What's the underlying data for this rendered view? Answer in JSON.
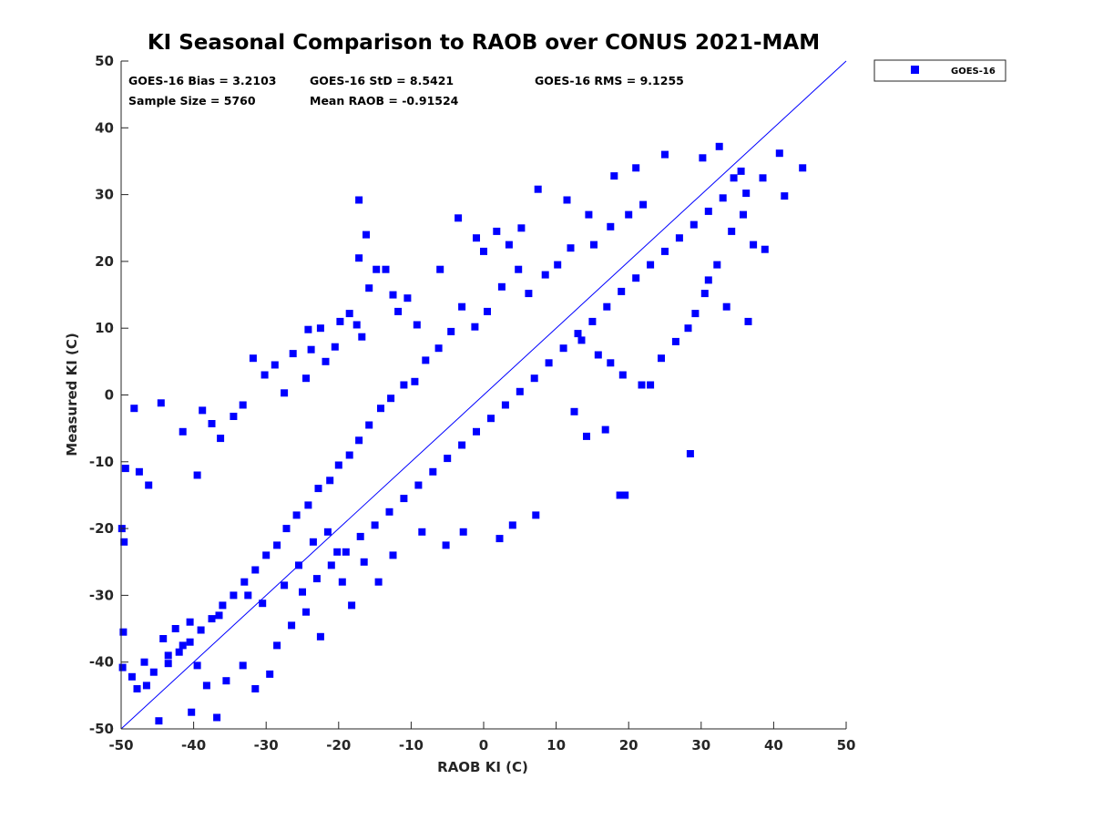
{
  "colors": {
    "series": "#0000FF",
    "axis": "#262626",
    "background": "#FFFFFF"
  },
  "chart_data": {
    "type": "scatter",
    "title": "KI Seasonal Comparison to RAOB over CONUS 2021-MAM",
    "xlabel": "RAOB KI (C)",
    "ylabel": "Measured KI (C)",
    "xlim": [
      -50,
      50
    ],
    "ylim": [
      -50,
      50
    ],
    "xticks": [
      "-50",
      "-40",
      "-30",
      "-20",
      "-10",
      "0",
      "10",
      "20",
      "30",
      "40",
      "50"
    ],
    "yticks": [
      "-50",
      "-40",
      "-30",
      "-20",
      "-10",
      "0",
      "10",
      "20",
      "30",
      "40",
      "50"
    ],
    "grid": false,
    "legend_position": "outside-top-right",
    "reference_line": {
      "type": "one-to-one",
      "from": [
        -50,
        -50
      ],
      "to": [
        50,
        50
      ]
    },
    "annotations": [
      "GOES-16 Bias = 3.2103",
      "GOES-16 StD = 8.5421",
      "GOES-16 RMS = 9.1255",
      "Sample Size = 5760",
      "Mean RAOB = -0.91524"
    ],
    "series": [
      {
        "name": "GOES-16",
        "marker": "square",
        "color": "#0000FF",
        "sample_size": 5760,
        "bias": 3.2103,
        "std": 8.5421,
        "rms": 9.1255,
        "mean_x": -0.91524,
        "points": [
          [
            -49.8,
            -40.8
          ],
          [
            -49.7,
            -35.5
          ],
          [
            -49.4,
            -11
          ],
          [
            -49.9,
            -20
          ],
          [
            -49.6,
            -22
          ],
          [
            -48.2,
            -2
          ],
          [
            -47.5,
            -11.5
          ],
          [
            -46.2,
            -13.5
          ],
          [
            -44.5,
            -1.2
          ],
          [
            -41.5,
            -5.5
          ],
          [
            -44.8,
            -48.8
          ],
          [
            -40.3,
            -47.5
          ],
          [
            -36.8,
            -48.3
          ],
          [
            -39.5,
            -12
          ],
          [
            -38.8,
            -2.3
          ],
          [
            -37.5,
            -4.3
          ],
          [
            -36.3,
            -6.5
          ],
          [
            -34.5,
            -3.2
          ],
          [
            -33.2,
            -1.5
          ],
          [
            -31.8,
            5.5
          ],
          [
            -30.2,
            3
          ],
          [
            -28.8,
            4.5
          ],
          [
            -27.5,
            0.3
          ],
          [
            -26.3,
            6.2
          ],
          [
            -24.5,
            2.5
          ],
          [
            -23.8,
            6.8
          ],
          [
            -21.8,
            5
          ],
          [
            -20.5,
            7.2
          ],
          [
            -17.5,
            10.5
          ],
          [
            -16.8,
            8.7
          ],
          [
            -19.8,
            11
          ],
          [
            -24.2,
            9.8
          ],
          [
            -22.5,
            10
          ],
          [
            -18.5,
            12.2
          ],
          [
            -15.8,
            16
          ],
          [
            -14.8,
            18.8
          ],
          [
            -13.5,
            18.8
          ],
          [
            -12.5,
            15
          ],
          [
            -17.2,
            29.2
          ],
          [
            -17.2,
            20.5
          ],
          [
            -16.2,
            24
          ],
          [
            -6,
            18.8
          ],
          [
            -10.5,
            14.5
          ],
          [
            -9.2,
            10.5
          ],
          [
            -11.8,
            12.5
          ],
          [
            -3.5,
            26.5
          ],
          [
            -1,
            23.5
          ],
          [
            0,
            21.5
          ],
          [
            1.8,
            24.5
          ],
          [
            3.5,
            22.5
          ],
          [
            5.2,
            25
          ],
          [
            7.5,
            30.8
          ],
          [
            11.5,
            29.2
          ],
          [
            14.5,
            27
          ],
          [
            18,
            32.8
          ],
          [
            21,
            34
          ],
          [
            25,
            36
          ],
          [
            30.2,
            35.5
          ],
          [
            32.5,
            37.2
          ],
          [
            35.5,
            33.5
          ],
          [
            40.8,
            36.2
          ],
          [
            44,
            34
          ],
          [
            41.5,
            29.8
          ],
          [
            38.5,
            32.5
          ],
          [
            37.2,
            22.5
          ],
          [
            38.8,
            21.8
          ],
          [
            36.5,
            11
          ],
          [
            33.5,
            13.2
          ],
          [
            29.2,
            12.2
          ],
          [
            30.5,
            15.2
          ],
          [
            28.5,
            -8.8
          ],
          [
            18.8,
            -15
          ],
          [
            19.5,
            -15
          ],
          [
            16.8,
            -5.2
          ],
          [
            14.2,
            -6.2
          ],
          [
            12.5,
            -2.5
          ],
          [
            7.2,
            -18
          ],
          [
            4,
            -19.5
          ],
          [
            2.2,
            -21.5
          ],
          [
            -2.8,
            -20.5
          ],
          [
            -5.2,
            -22.5
          ],
          [
            -8.5,
            -20.5
          ],
          [
            -12.5,
            -24
          ],
          [
            -14.5,
            -28
          ],
          [
            -16.5,
            -25
          ],
          [
            -18.2,
            -31.5
          ],
          [
            -19.5,
            -28
          ],
          [
            -22.5,
            -36.2
          ],
          [
            -24.5,
            -32.5
          ],
          [
            -26.5,
            -34.5
          ],
          [
            -28.5,
            -37.5
          ],
          [
            -29.5,
            -41.8
          ],
          [
            -31.5,
            -44
          ],
          [
            -33.2,
            -40.5
          ],
          [
            -35.5,
            -42.8
          ],
          [
            -38.2,
            -43.5
          ],
          [
            -39.5,
            -40.5
          ],
          [
            -41.5,
            -37.5
          ],
          [
            -43.5,
            -39
          ],
          [
            -45.5,
            -41.5
          ],
          [
            -46.5,
            -43.5
          ],
          [
            -47.8,
            -44
          ],
          [
            -48.5,
            -42.2
          ],
          [
            -46.8,
            -40
          ],
          [
            -44.2,
            -36.5
          ],
          [
            -42.5,
            -35
          ],
          [
            -40.5,
            -34
          ],
          [
            -36.5,
            -33
          ],
          [
            -32.5,
            -30
          ],
          [
            -30.5,
            -31.2
          ],
          [
            -27.5,
            -28.5
          ],
          [
            -25.5,
            -25.5
          ],
          [
            -23.5,
            -22
          ],
          [
            -21.5,
            -20.5
          ],
          [
            -20.2,
            -23.5
          ],
          [
            13.5,
            8.2
          ],
          [
            15.8,
            6
          ],
          [
            17.5,
            4.8
          ],
          [
            19.2,
            3
          ],
          [
            21.8,
            1.5
          ],
          [
            23,
            1.5
          ],
          [
            24.5,
            5.5
          ],
          [
            26.5,
            8
          ],
          [
            28.2,
            10
          ],
          [
            31,
            17.2
          ],
          [
            32.2,
            19.5
          ],
          [
            34.2,
            24.5
          ],
          [
            35.8,
            27
          ],
          [
            36.2,
            30.2
          ],
          [
            34.5,
            32.5
          ],
          [
            22,
            28.5
          ],
          [
            20,
            27
          ],
          [
            17.5,
            25.2
          ],
          [
            15.2,
            22.5
          ],
          [
            12,
            22
          ],
          [
            10.2,
            19.5
          ],
          [
            8.5,
            18
          ],
          [
            6.2,
            15.2
          ],
          [
            4.8,
            18.8
          ],
          [
            2.5,
            16.2
          ],
          [
            0.5,
            12.5
          ],
          [
            -1.2,
            10.2
          ],
          [
            -3,
            13.2
          ],
          [
            -4.5,
            9.5
          ],
          [
            -6.2,
            7
          ],
          [
            -8,
            5.2
          ],
          [
            -9.5,
            2
          ],
          [
            -11,
            1.5
          ],
          [
            -12.8,
            -0.5
          ],
          [
            -14.2,
            -2
          ],
          [
            -15.8,
            -4.5
          ],
          [
            -17.2,
            -6.8
          ],
          [
            -18.5,
            -9
          ],
          [
            -20,
            -10.5
          ],
          [
            -21.2,
            -12.8
          ],
          [
            -22.8,
            -14
          ],
          [
            -24.2,
            -16.5
          ],
          [
            -25.8,
            -18
          ],
          [
            -27.2,
            -20
          ],
          [
            -28.5,
            -22.5
          ],
          [
            -30,
            -24
          ],
          [
            -31.5,
            -26.2
          ],
          [
            -33,
            -28
          ],
          [
            -34.5,
            -30
          ],
          [
            -36,
            -31.5
          ],
          [
            -37.5,
            -33.5
          ],
          [
            -39,
            -35.2
          ],
          [
            -40.5,
            -37
          ],
          [
            -42,
            -38.5
          ],
          [
            -43.5,
            -40.2
          ],
          [
            5,
            0.5
          ],
          [
            7,
            2.5
          ],
          [
            9,
            4.8
          ],
          [
            11,
            7
          ],
          [
            13,
            9.2
          ],
          [
            15,
            11
          ],
          [
            17,
            13.2
          ],
          [
            19,
            15.5
          ],
          [
            21,
            17.5
          ],
          [
            23,
            19.5
          ],
          [
            25,
            21.5
          ],
          [
            27,
            23.5
          ],
          [
            29,
            25.5
          ],
          [
            31,
            27.5
          ],
          [
            33,
            29.5
          ],
          [
            3,
            -1.5
          ],
          [
            1,
            -3.5
          ],
          [
            -1,
            -5.5
          ],
          [
            -3,
            -7.5
          ],
          [
            -5,
            -9.5
          ],
          [
            -7,
            -11.5
          ],
          [
            -9,
            -13.5
          ],
          [
            -11,
            -15.5
          ],
          [
            -13,
            -17.5
          ],
          [
            -15,
            -19.5
          ],
          [
            -17,
            -21.2
          ],
          [
            -19,
            -23.5
          ],
          [
            -21,
            -25.5
          ],
          [
            -23,
            -27.5
          ],
          [
            -25,
            -29.5
          ]
        ]
      }
    ]
  }
}
